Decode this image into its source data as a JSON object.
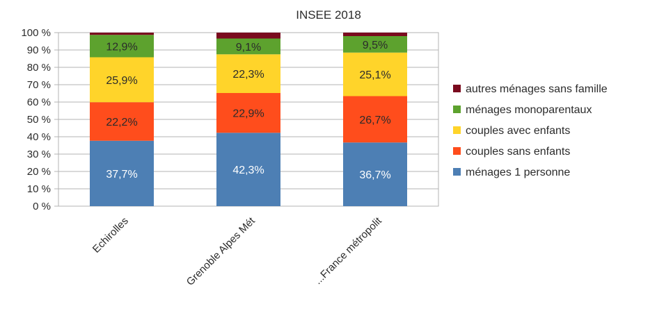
{
  "chart_data": {
    "type": "bar",
    "stacked": true,
    "title": "INSEE 2018",
    "xlabel": "",
    "ylabel": "",
    "ylim": [
      0,
      100
    ],
    "yticks": [
      "0 %",
      "10 %",
      "20 %",
      "30 %",
      "40 %",
      "50 %",
      "60 %",
      "70 %",
      "80 %",
      "90 %",
      "100 %"
    ],
    "categories": [
      "Echirolles",
      "Grenoble Alpes Mét",
      "...France métropolit"
    ],
    "grid": true,
    "legend_position": "right",
    "series": [
      {
        "name": "ménages 1 personne",
        "color": "#4d7fb4",
        "label_color": "#ffffff",
        "values": [
          37.7,
          42.3,
          36.7
        ],
        "labels": [
          "37,7%",
          "42,3%",
          "36,7%"
        ]
      },
      {
        "name": "couples sans enfants",
        "color": "#ff4d1c",
        "label_color": "#2b2b2b",
        "values": [
          22.2,
          22.9,
          26.7
        ],
        "labels": [
          "22,2%",
          "22,9%",
          "26,7%"
        ]
      },
      {
        "name": "couples avec enfants",
        "color": "#ffd42a",
        "label_color": "#2b2b2b",
        "values": [
          25.9,
          22.3,
          25.1
        ],
        "labels": [
          "25,9%",
          "22,3%",
          "25,1%"
        ]
      },
      {
        "name": "ménages monoparentaux",
        "color": "#5da22e",
        "label_color": "#2b2b2b",
        "values": [
          12.9,
          9.1,
          9.5
        ],
        "labels": [
          "12,9%",
          "9,1%",
          "9,5%"
        ]
      },
      {
        "name": "autres ménages sans famille",
        "color": "#7a0a1e",
        "label_color": "#ffffff",
        "values": [
          1.3,
          3.4,
          2.0
        ],
        "labels": [
          "",
          "",
          ""
        ]
      }
    ]
  }
}
